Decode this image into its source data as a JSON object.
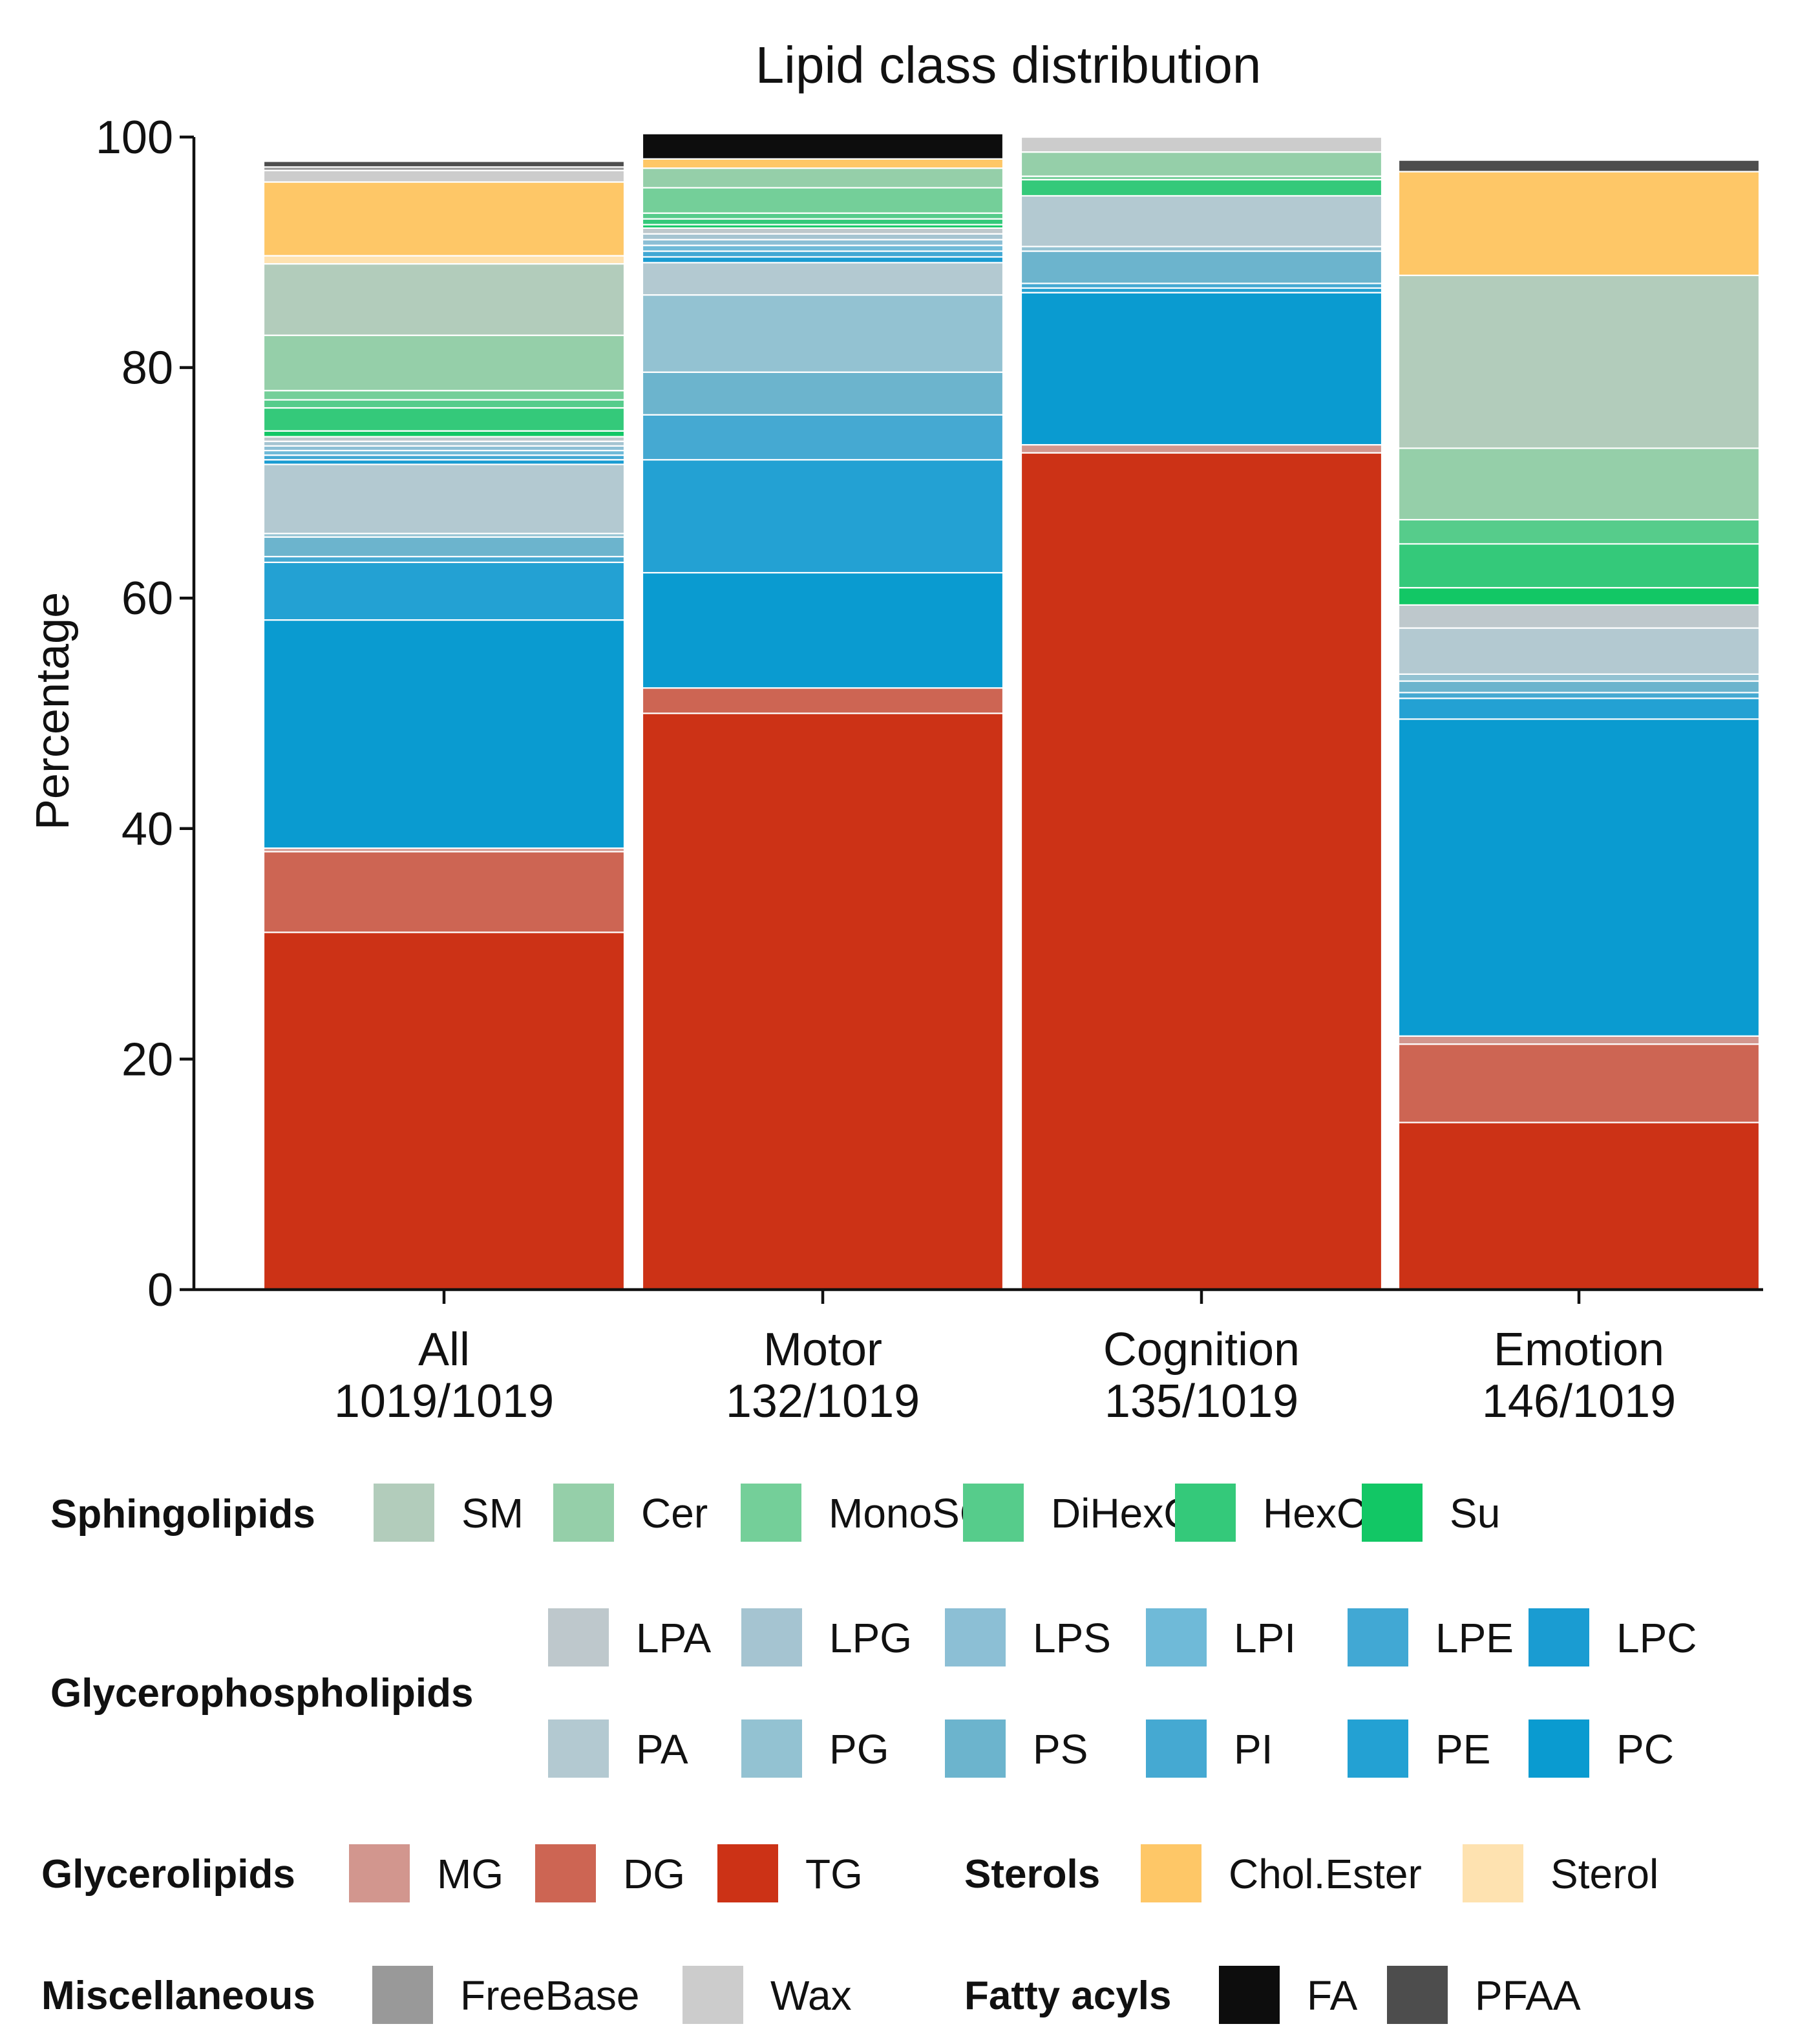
{
  "chart_data": {
    "type": "bar",
    "stacked": true,
    "title": "Lipid class distribution",
    "xlabel": "",
    "ylabel": "Percentage",
    "ylim": [
      0,
      100
    ],
    "yticks": [
      0,
      20,
      40,
      60,
      80,
      100
    ],
    "categories": [
      {
        "name": "All",
        "count": "1019/1019"
      },
      {
        "name": "Motor",
        "count": "132/1019"
      },
      {
        "name": "Cognition",
        "count": "135/1019"
      },
      {
        "name": "Emotion",
        "count": "146/1019"
      }
    ],
    "colors": {
      "SM": "#b2ccbb",
      "Cer": "#95cfa9",
      "MonoSGL": "#74cf99",
      "DiHexCer": "#56cc8b",
      "HexCer": "#34c97a",
      "Su": "#12c765",
      "LPA": "#bec8cc",
      "LPG": "#a5c4d1",
      "LPS": "#8cbfd5",
      "LPI": "#6fbad8",
      "LPE": "#41a8d4",
      "LPC": "#1a9cd2",
      "PA": "#b3c9d1",
      "PG": "#93c2d2",
      "PS": "#6cb4cd",
      "PI": "#45a9d2",
      "PE": "#23a1d3",
      "PC": "#0a9bd0",
      "MG": "#d2968e",
      "DG": "#cd6553",
      "TG": "#cc3216",
      "Chol.Ester": "#fec767",
      "Sterol": "#fee2b0",
      "FreeBase": "#999999",
      "Wax": "#cccccc",
      "FA": "#0d0d0d",
      "PFAA": "#4d4d4d"
    },
    "stack_order": [
      "TG",
      "DG",
      "MG",
      "PC",
      "PE",
      "PI",
      "PS",
      "PG",
      "PA",
      "LPC",
      "LPE",
      "LPI",
      "LPS",
      "LPG",
      "LPA",
      "Su",
      "HexCer",
      "DiHexCer",
      "MonoSGL",
      "Cer",
      "SM",
      "Sterol",
      "Chol.Ester",
      "Wax",
      "FreeBase",
      "PFAA",
      "FA"
    ],
    "series": [
      {
        "name": "TG",
        "values": [
          31.0,
          50.0,
          72.6,
          14.5
        ]
      },
      {
        "name": "DG",
        "values": [
          7.0,
          2.2,
          0.0,
          6.8
        ]
      },
      {
        "name": "MG",
        "values": [
          0.3,
          0.0,
          0.7,
          0.7
        ]
      },
      {
        "name": "PC",
        "values": [
          19.8,
          10.0,
          13.2,
          27.5
        ]
      },
      {
        "name": "PE",
        "values": [
          5.0,
          9.8,
          0.4,
          1.8
        ]
      },
      {
        "name": "PI",
        "values": [
          0.5,
          3.9,
          0.4,
          0.5
        ]
      },
      {
        "name": "PS",
        "values": [
          1.7,
          3.7,
          2.8,
          1.0
        ]
      },
      {
        "name": "PG",
        "values": [
          0.3,
          6.7,
          0.4,
          0.6
        ]
      },
      {
        "name": "PA",
        "values": [
          6.0,
          2.8,
          4.4,
          4.0
        ]
      },
      {
        "name": "LPC",
        "values": [
          0.4,
          0.5,
          0.0,
          0.0
        ]
      },
      {
        "name": "LPE",
        "values": [
          0.4,
          0.5,
          0.0,
          0.0
        ]
      },
      {
        "name": "LPI",
        "values": [
          0.4,
          0.5,
          0.0,
          0.0
        ]
      },
      {
        "name": "LPS",
        "values": [
          0.4,
          0.5,
          0.0,
          0.0
        ]
      },
      {
        "name": "LPG",
        "values": [
          0.4,
          0.5,
          0.0,
          0.0
        ]
      },
      {
        "name": "LPA",
        "values": [
          0.4,
          0.5,
          0.0,
          2.0
        ]
      },
      {
        "name": "Su",
        "values": [
          0.5,
          0.3,
          0.0,
          1.5
        ]
      },
      {
        "name": "HexCer",
        "values": [
          2.0,
          0.5,
          1.4,
          3.8
        ]
      },
      {
        "name": "DiHexCer",
        "values": [
          0.7,
          0.5,
          0.0,
          2.1
        ]
      },
      {
        "name": "MonoSGL",
        "values": [
          0.8,
          2.2,
          0.3,
          0.0
        ]
      },
      {
        "name": "Cer",
        "values": [
          4.8,
          1.7,
          2.1,
          6.2
        ]
      },
      {
        "name": "SM",
        "values": [
          6.2,
          0.0,
          0.0,
          15.0
        ]
      },
      {
        "name": "Sterol",
        "values": [
          0.7,
          0.0,
          0.0,
          0.0
        ]
      },
      {
        "name": "Chol.Ester",
        "values": [
          6.4,
          0.8,
          0.0,
          9.0
        ]
      },
      {
        "name": "Wax",
        "values": [
          1.0,
          0.0,
          1.3,
          0.0
        ]
      },
      {
        "name": "FreeBase",
        "values": [
          0.3,
          0.0,
          0.0,
          0.0
        ]
      },
      {
        "name": "PFAA",
        "values": [
          0.5,
          0.0,
          0.0,
          1.0
        ]
      },
      {
        "name": "FA",
        "values": [
          0.0,
          2.2,
          0.0,
          0.0
        ]
      }
    ],
    "legend": [
      {
        "group": "Sphingolipids",
        "items": [
          "SM",
          "Cer",
          "MonoSGL",
          "DiHexCer",
          "HexCer",
          "Su"
        ]
      },
      {
        "group": "Glycerophospholipids",
        "items": [
          "LPA",
          "LPG",
          "LPS",
          "LPI",
          "LPE",
          "LPC",
          "PA",
          "PG",
          "PS",
          "PI",
          "PE",
          "PC"
        ]
      },
      {
        "group": "Glycerolipids",
        "items": [
          "MG",
          "DG",
          "TG"
        ]
      },
      {
        "group": "Sterols",
        "items": [
          "Chol.Ester",
          "Sterol"
        ]
      },
      {
        "group": "Miscellaneous",
        "items": [
          "FreeBase",
          "Wax"
        ]
      },
      {
        "group": "Fatty acyls",
        "items": [
          "FA",
          "PFAA"
        ]
      }
    ]
  }
}
